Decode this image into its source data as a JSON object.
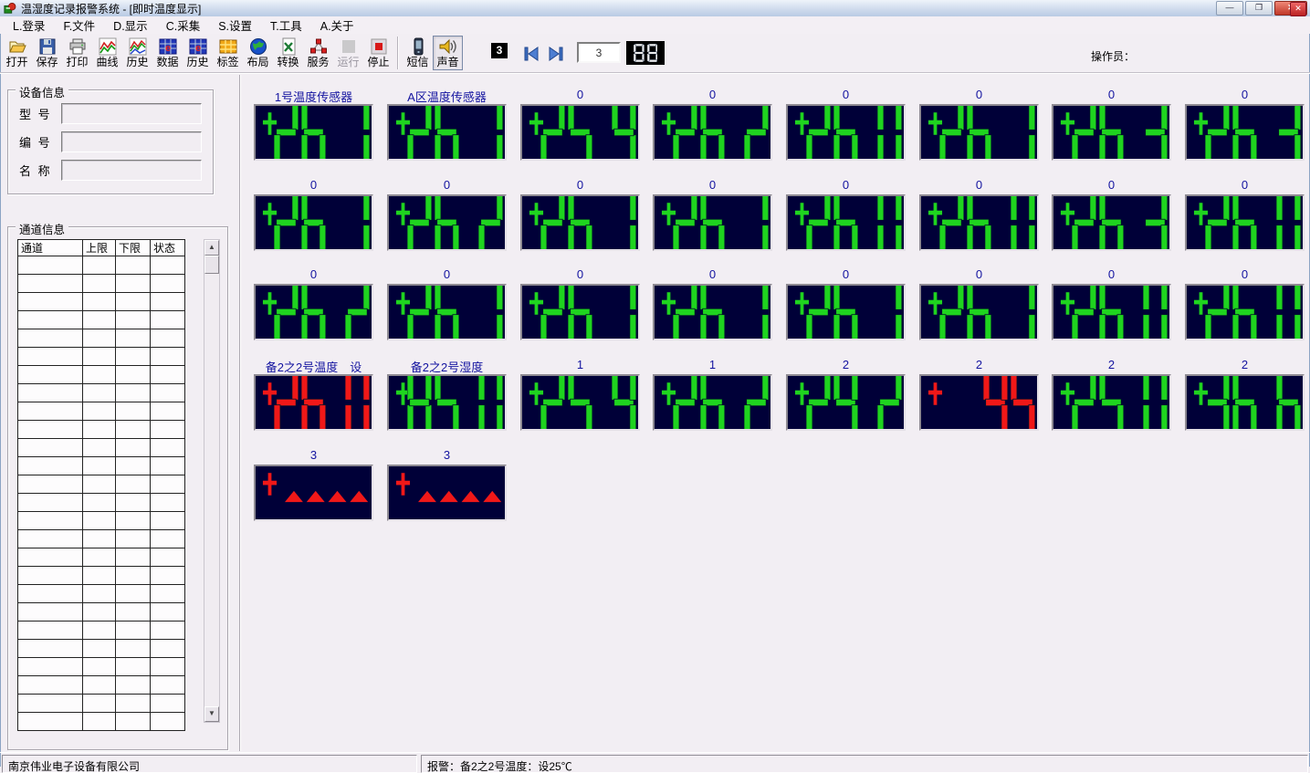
{
  "window": {
    "title": "温湿度记录报警系统 - [即时温度显示]",
    "controls": [
      {
        "name": "minimize",
        "glyph": "—"
      },
      {
        "name": "restore",
        "glyph": "❐"
      },
      {
        "name": "close",
        "glyph": "✕"
      }
    ],
    "mdi_close_glyph": "✕"
  },
  "menu": {
    "items": [
      "L.登录",
      "F.文件",
      "D.显示",
      "C.采集",
      "S.设置",
      "T.工具",
      "A.关于"
    ]
  },
  "toolbar": {
    "buttons": [
      {
        "label": "打开",
        "icon": "open-folder-icon"
      },
      {
        "label": "保存",
        "icon": "save-floppy-icon"
      },
      {
        "label": "打印",
        "icon": "printer-icon"
      },
      {
        "label": "曲线",
        "icon": "curve-chart-icon"
      },
      {
        "label": "历史",
        "icon": "history-curve-icon"
      },
      {
        "label": "数据",
        "icon": "data-table-icon"
      },
      {
        "label": "历史",
        "icon": "history-data-icon"
      },
      {
        "label": "标签",
        "icon": "label-grid-icon"
      },
      {
        "label": "布局",
        "icon": "layout-globe-icon"
      },
      {
        "label": "转换",
        "icon": "convert-excel-icon"
      },
      {
        "label": "服务",
        "icon": "service-network-icon"
      },
      {
        "label": "运行",
        "icon": "run-icon",
        "disabled": true
      },
      {
        "label": "停止",
        "icon": "stop-icon"
      },
      {
        "separator": true
      },
      {
        "label": "短信",
        "icon": "sms-phone-icon"
      },
      {
        "label": "声音",
        "icon": "sound-speaker-icon",
        "pressed": true
      }
    ],
    "page_badge": "3",
    "page_input": "3",
    "led_icon_value": "88",
    "operator_label": "操作员："
  },
  "device_info": {
    "title": "设备信息",
    "fields": [
      {
        "label": "型  号",
        "value": ""
      },
      {
        "label": "编  号",
        "value": ""
      },
      {
        "label": "名  称",
        "value": ""
      }
    ]
  },
  "channel_info": {
    "title": "通道信息",
    "columns": [
      "通道",
      "上限",
      "下限",
      "状态"
    ],
    "row_count": 26
  },
  "displays": {
    "rows": [
      {
        "cells": [
          {
            "label": "1号温度传感器",
            "value": "26.1",
            "color": "green"
          },
          {
            "label": "A区温度传感器",
            "value": "26.1",
            "color": "green"
          },
          {
            "label": "0",
            "value": "25.9",
            "color": "green"
          },
          {
            "label": "0",
            "value": "26.2",
            "color": "green"
          },
          {
            "label": "0",
            "value": "26.0",
            "color": "green"
          },
          {
            "label": "0",
            "value": "26.1",
            "color": "green"
          },
          {
            "label": "0",
            "value": "26.3",
            "color": "green"
          },
          {
            "label": "0",
            "value": "26.3",
            "color": "green"
          }
        ]
      },
      {
        "cells": [
          {
            "label": "0",
            "value": "26.1",
            "color": "green"
          },
          {
            "label": "0",
            "value": "26.2",
            "color": "green"
          },
          {
            "label": "0",
            "value": "26.1",
            "color": "green"
          },
          {
            "label": "0",
            "value": "26.1",
            "color": "green"
          },
          {
            "label": "0",
            "value": "26.0",
            "color": "green"
          },
          {
            "label": "0",
            "value": "26.0",
            "color": "green"
          },
          {
            "label": "0",
            "value": "26.3",
            "color": "green"
          },
          {
            "label": "0",
            "value": "26.0",
            "color": "green"
          }
        ]
      },
      {
        "cells": [
          {
            "label": "0",
            "value": "26.2",
            "color": "green"
          },
          {
            "label": "0",
            "value": "26.1",
            "color": "green"
          },
          {
            "label": "0",
            "value": "26.1",
            "color": "green"
          },
          {
            "label": "0",
            "value": "26.1",
            "color": "green"
          },
          {
            "label": "0",
            "value": "26.1",
            "color": "green"
          },
          {
            "label": "0",
            "value": "26.1",
            "color": "green"
          },
          {
            "label": "0",
            "value": "26.0",
            "color": "green"
          },
          {
            "label": "0",
            "value": "26.0",
            "color": "green"
          }
        ]
      },
      {
        "cells": [
          {
            "label": "备2之2号温度　设",
            "value": "26.0",
            "color": "red"
          },
          {
            "label": "备2之2号湿度",
            "value": "85.0",
            "color": "green"
          },
          {
            "label": "1",
            "value": "25.4",
            "color": "green"
          },
          {
            "label": "1",
            "value": "26.2",
            "color": "green"
          },
          {
            "label": "2",
            "value": "24.2",
            "color": "green"
          },
          {
            "label": "2",
            "value": "45",
            "color": "red"
          },
          {
            "label": "2",
            "value": "25.0",
            "color": "green"
          },
          {
            "label": "2",
            "value": "36.6",
            "color": "green"
          }
        ]
      },
      {
        "cells": [
          {
            "label": "3",
            "value": "alarm",
            "color": "red"
          },
          {
            "label": "3",
            "value": "alarm",
            "color": "red"
          }
        ]
      }
    ]
  },
  "status_bar": {
    "left": "南京伟业电子设备有限公司",
    "right": "报警：备2之2号温度：设25℃"
  },
  "colors": {
    "led_green": "#1fd41f",
    "led_red": "#f01818",
    "panel_bg": "#000038",
    "label_blue": "#1414a0"
  }
}
